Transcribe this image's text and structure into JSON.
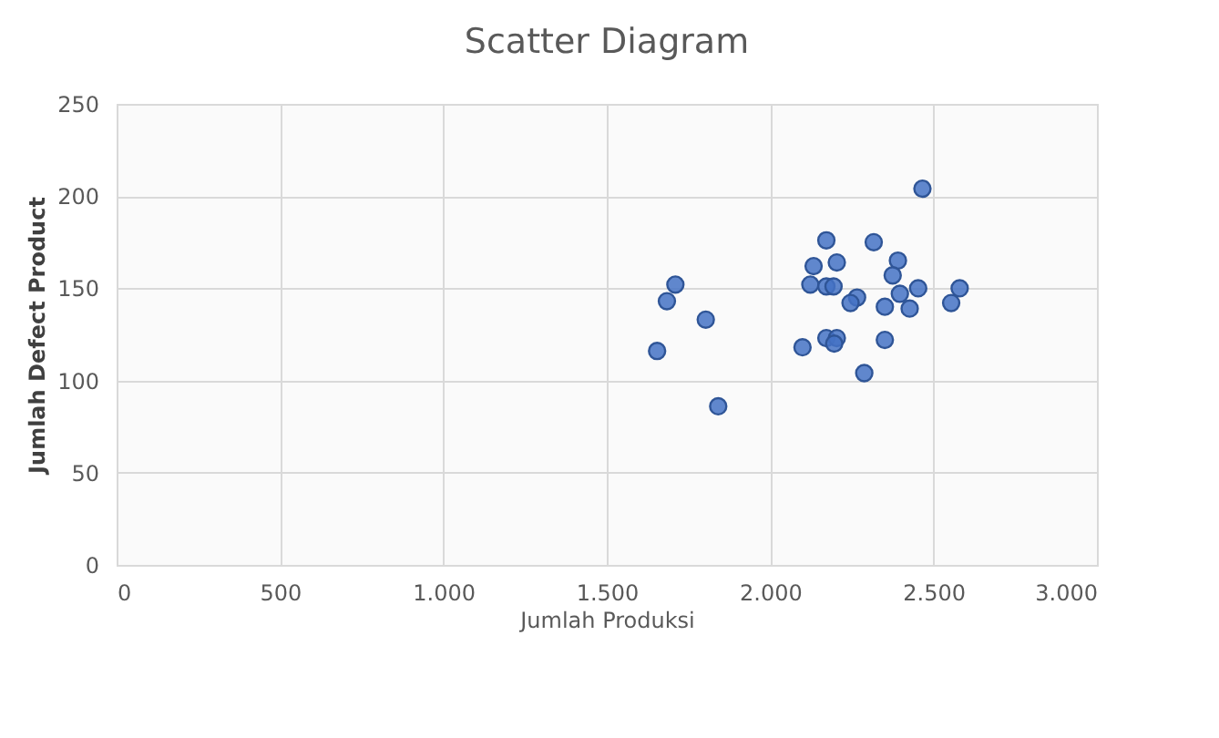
{
  "chart_data": {
    "type": "scatter",
    "title": "Scatter Diagram",
    "xlabel": "Jumlah Produksi",
    "ylabel": "Jumlah Defect Product",
    "x": [
      2466,
      2172,
      2317,
      2391,
      2133,
      2204,
      2375,
      1710,
      2123,
      2172,
      2194,
      2453,
      2580,
      2397,
      2266,
      2246,
      2351,
      2427,
      2554,
      1684,
      1803,
      1654,
      2099,
      2172,
      2204,
      2196,
      2351,
      2288,
      1841
    ],
    "series": [
      {
        "color": "#4472c4",
        "values": [
          204,
          176,
          175,
          165,
          162,
          164,
          157,
          152,
          152,
          151,
          151,
          150,
          150,
          147,
          145,
          142,
          140,
          139,
          142,
          143,
          133,
          116,
          118,
          123,
          123,
          120,
          122,
          104,
          86
        ]
      }
    ],
    "xlim": [
      0,
      3000
    ],
    "xticks": [
      0,
      500,
      {
        "value": 1000,
        "label": "1.000"
      },
      {
        "value": 1500,
        "label": "1.500"
      },
      {
        "value": 2000,
        "label": "2.000"
      },
      {
        "value": 2500,
        "label": "2.500"
      },
      {
        "value": 3000,
        "label": "3.000"
      }
    ],
    "ylim": [
      0,
      250
    ],
    "yticks": [
      0,
      50,
      100,
      150,
      200,
      250
    ],
    "grid": true,
    "marker": "circle"
  }
}
